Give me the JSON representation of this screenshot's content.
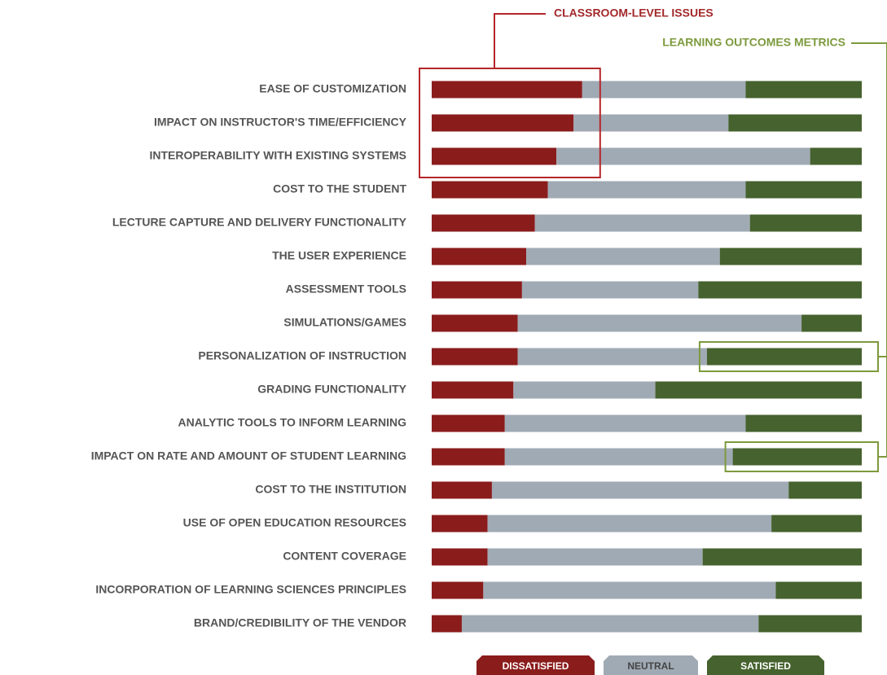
{
  "chart_data": {
    "type": "stacked_bar_horizontal_100",
    "annotations": [
      "CLASSROOM-LEVEL ISSUES",
      "LEARNING OUTCOMES METRICS"
    ],
    "categories": [
      "EASE OF CUSTOMIZATION",
      "IMPACT ON INSTRUCTOR'S TIME/EFFICIENCY",
      "INTEROPERABILITY WITH EXISTING SYSTEMS",
      "COST TO THE STUDENT",
      "LECTURE CAPTURE AND DELIVERY FUNCTIONALITY",
      "THE USER EXPERIENCE",
      "ASSESSMENT TOOLS",
      "SIMULATIONS/GAMES",
      "PERSONALIZATION OF INSTRUCTION",
      "GRADING FUNCTIONALITY",
      "ANALYTIC TOOLS TO INFORM LEARNING",
      "IMPACT ON RATE AND AMOUNT OF STUDENT LEARNING",
      "COST TO THE INSTITUTION",
      "USE OF OPEN EDUCATION RESOURCES",
      "CONTENT COVERAGE",
      "INCORPORATION OF LEARNING SCIENCES PRINCIPLES",
      "BRAND/CREDIBILITY OF THE VENDOR"
    ],
    "series": [
      {
        "name": "DISSATISFIED",
        "color": "#8b1c1c",
        "values": [
          35,
          33,
          29,
          27,
          24,
          22,
          21,
          20,
          20,
          19,
          17,
          17,
          14,
          13,
          13,
          12,
          7
        ]
      },
      {
        "name": "NEUTRAL",
        "color": "#a0aab4",
        "values": [
          38,
          36,
          59,
          46,
          50,
          45,
          41,
          66,
          44,
          33,
          56,
          53,
          69,
          66,
          50,
          68,
          69
        ]
      },
      {
        "name": "SATISFIED",
        "color": "#46622e",
        "values": [
          27,
          31,
          12,
          27,
          26,
          33,
          38,
          14,
          36,
          48,
          27,
          30,
          17,
          21,
          37,
          20,
          24
        ]
      }
    ]
  }
}
